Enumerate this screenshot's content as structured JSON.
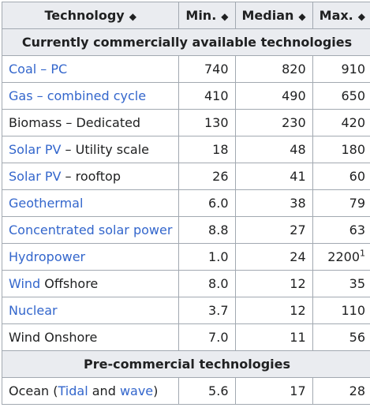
{
  "headers": [
    {
      "label": "Technology",
      "sort_icon": "sort-both-icon"
    },
    {
      "label": "Min.",
      "sort_icon": "sort-both-icon"
    },
    {
      "label": "Median",
      "sort_icon": "sort-both-icon"
    },
    {
      "label": "Max.",
      "sort_icon": "sort-both-icon"
    }
  ],
  "sections": {
    "commercial": "Currently commercially available technologies",
    "precommercial": "Pre-commercial technologies"
  },
  "rows": [
    {
      "tech": {
        "link1": "Coal – PC"
      },
      "min": "740",
      "median": "820",
      "max": "910"
    },
    {
      "tech": {
        "link1": "Gas – combined cycle"
      },
      "min": "410",
      "median": "490",
      "max": "650"
    },
    {
      "tech": {
        "text1": "Biomass – Dedicated"
      },
      "min": "130",
      "median": "230",
      "max": "420"
    },
    {
      "tech": {
        "link1": "Solar PV",
        "text1": " – Utility scale"
      },
      "min": "18",
      "median": "48",
      "max": "180"
    },
    {
      "tech": {
        "link1": "Solar PV",
        "text1": " – rooftop"
      },
      "min": "26",
      "median": "41",
      "max": "60"
    },
    {
      "tech": {
        "link1": "Geothermal"
      },
      "min": "6.0",
      "median": "38",
      "max": "79"
    },
    {
      "tech": {
        "link1": "Concentrated solar power"
      },
      "min": "8.8",
      "median": "27",
      "max": "63"
    },
    {
      "tech": {
        "link1": "Hydropower"
      },
      "min": "1.0",
      "median": "24",
      "max": "2200",
      "max_sup": "1"
    },
    {
      "tech": {
        "link1": "Wind",
        "text1": " Offshore"
      },
      "min": "8.0",
      "median": "12",
      "max": "35"
    },
    {
      "tech": {
        "link1": "Nuclear"
      },
      "min": "3.7",
      "median": "12",
      "max": "110"
    },
    {
      "tech": {
        "text1": "Wind Onshore"
      },
      "min": "7.0",
      "median": "11",
      "max": "56"
    }
  ],
  "ocean_row": {
    "text_before": "Ocean (",
    "link1": "Tidal",
    "text_mid": " and ",
    "link2": "wave",
    "text_after": ")",
    "min": "5.6",
    "median": "17",
    "max": "28"
  },
  "colors": {
    "link": "#3366cc",
    "header_bg": "#eaecf0",
    "border": "#a2a9b1"
  }
}
